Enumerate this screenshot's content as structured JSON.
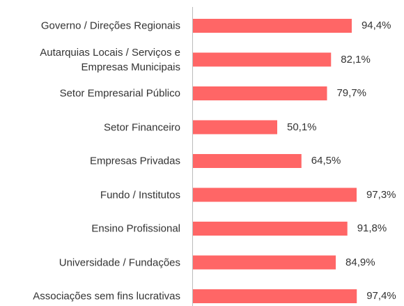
{
  "chart_data": {
    "type": "bar",
    "orientation": "horizontal",
    "categories": [
      "Governo / Direções Regionais",
      "Autarquias Locais / Serviços e Empresas Municipais",
      "Setor Empresarial Público",
      "Setor Financeiro",
      "Empresas Privadas",
      "Fundo / Institutos",
      "Ensino Profissional",
      "Universidade / Fundações",
      "Associações sem fins lucrativas"
    ],
    "values": [
      94.4,
      82.1,
      79.7,
      50.1,
      64.5,
      97.3,
      91.8,
      84.9,
      97.4
    ],
    "value_labels": [
      "94,4%",
      "82,1%",
      "79,7%",
      "50,1%",
      "64,5%",
      "97,3%",
      "91,8%",
      "84,9%",
      "97,4%"
    ],
    "color": "#ff6666",
    "xlim": [
      0,
      100
    ]
  }
}
